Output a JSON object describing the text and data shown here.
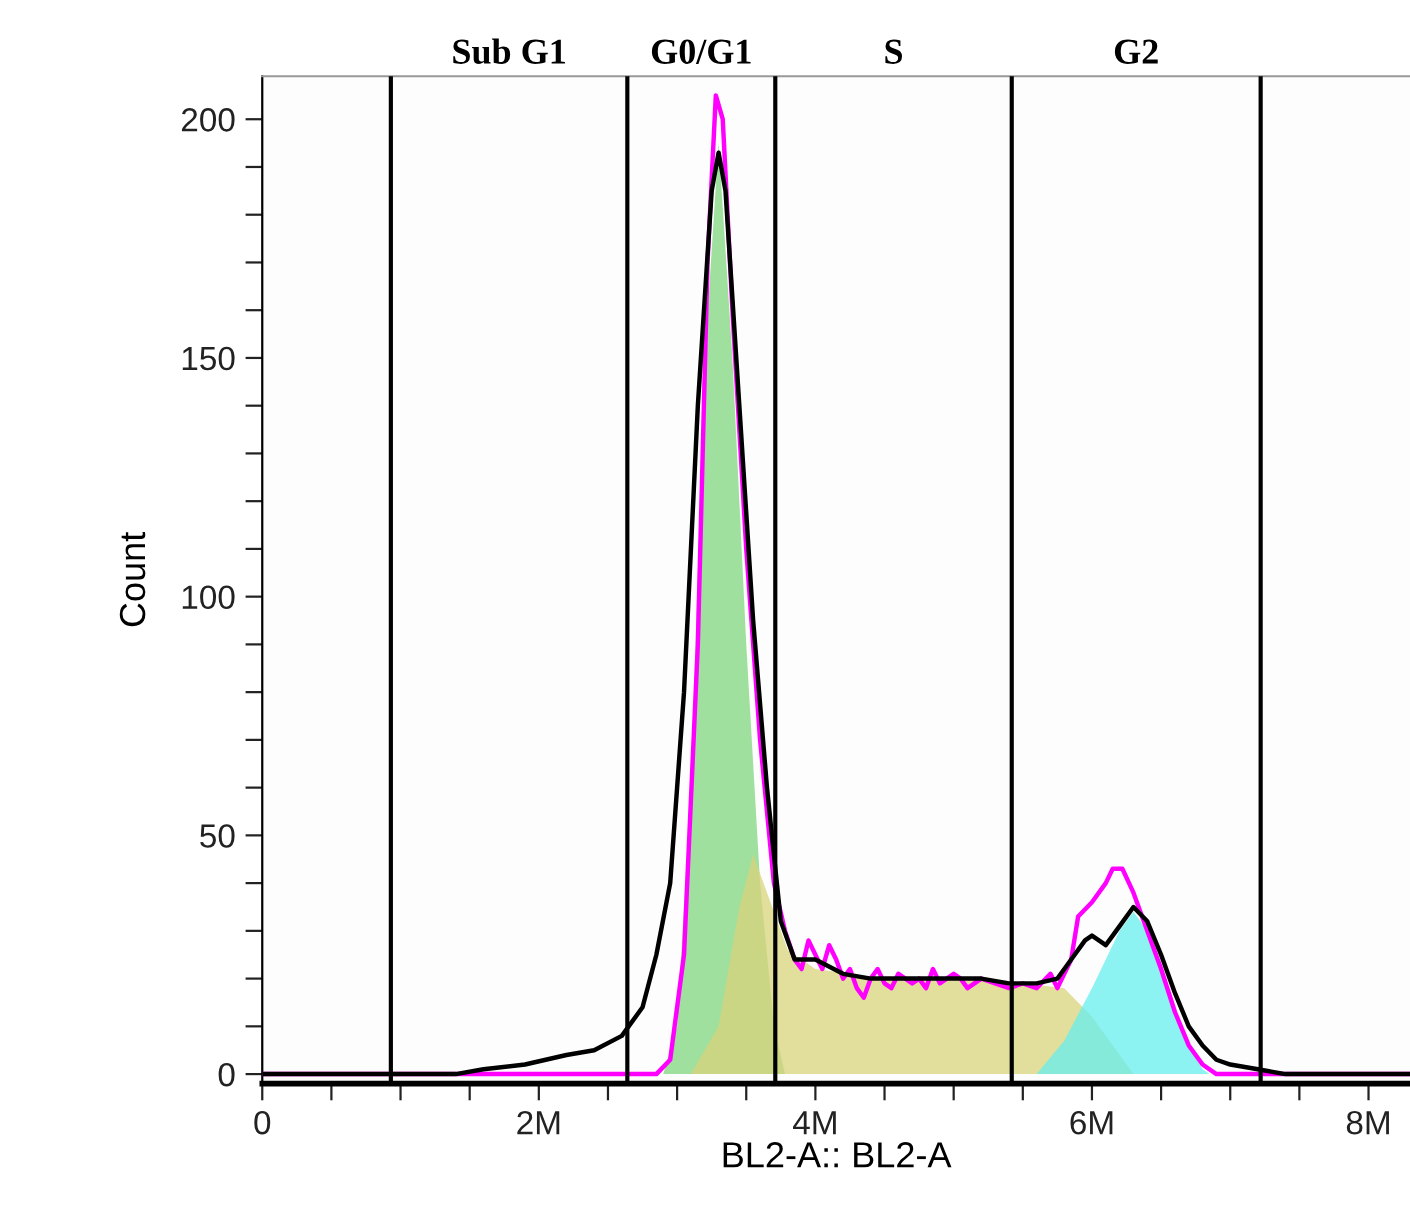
{
  "chart_data": {
    "type": "line",
    "xlabel": "BL2-A:: BL2-A",
    "ylabel": "Count",
    "xlim": [
      0,
      8.3
    ],
    "ylim": [
      -2,
      209
    ],
    "xticks": [
      0,
      {
        "value": 0.5,
        "label": null
      },
      {
        "value": 1,
        "label": null
      },
      {
        "value": 1.5,
        "label": null
      },
      {
        "value": 2,
        "label": "2M"
      },
      {
        "value": 2.5,
        "label": null
      },
      {
        "value": 3,
        "label": null
      },
      {
        "value": 3.5,
        "label": null
      },
      {
        "value": 4,
        "label": "4M"
      },
      {
        "value": 4.5,
        "label": null
      },
      {
        "value": 5,
        "label": null
      },
      {
        "value": 5.5,
        "label": null
      },
      {
        "value": 6,
        "label": "6M"
      },
      {
        "value": 6.5,
        "label": null
      },
      {
        "value": 7,
        "label": null
      },
      {
        "value": 7.5,
        "label": null
      },
      {
        "value": 8,
        "label": "8M"
      }
    ],
    "yticks": [
      0,
      {
        "value": 10,
        "label": null
      },
      {
        "value": 20,
        "label": null
      },
      {
        "value": 30,
        "label": null
      },
      {
        "value": 40,
        "label": null
      },
      50,
      {
        "value": 60,
        "label": null
      },
      {
        "value": 70,
        "label": null
      },
      {
        "value": 80,
        "label": null
      },
      {
        "value": 90,
        "label": null
      },
      100,
      {
        "value": 110,
        "label": null
      },
      {
        "value": 120,
        "label": null
      },
      {
        "value": 130,
        "label": null
      },
      {
        "value": 140,
        "label": null
      },
      150,
      {
        "value": 160,
        "label": null
      },
      {
        "value": 170,
        "label": null
      },
      {
        "value": 180,
        "label": null
      },
      {
        "value": 190,
        "label": null
      },
      200
    ],
    "grid": false,
    "legend": false,
    "marker": "none",
    "line_style": "solid",
    "series": [
      {
        "type": "area",
        "color": "#7fd67f",
        "x": [
          2.9,
          3.0,
          3.1,
          3.2,
          3.3,
          3.4,
          3.5,
          3.6,
          3.7,
          3.78
        ],
        "values": [
          0,
          10,
          60,
          150,
          195,
          150,
          90,
          40,
          10,
          0
        ]
      },
      {
        "type": "area",
        "color": "#d8d37a",
        "x": [
          3.1,
          3.3,
          3.45,
          3.55,
          3.65,
          3.8,
          4.0,
          4.5,
          5.0,
          5.5,
          5.8,
          6.0,
          6.2,
          6.3
        ],
        "values": [
          0,
          10,
          35,
          46,
          38,
          26,
          22,
          20,
          20,
          19,
          18,
          12,
          4,
          0
        ]
      },
      {
        "type": "area",
        "color": "#66eeee",
        "x": [
          5.6,
          5.8,
          6.0,
          6.2,
          6.3,
          6.4,
          6.5,
          6.6,
          6.7,
          6.8,
          6.85
        ],
        "values": [
          0,
          7,
          18,
          30,
          34,
          30,
          22,
          14,
          6,
          1,
          0
        ]
      },
      {
        "color": "#ff00ff",
        "x": [
          0,
          2.85,
          2.95,
          3.05,
          3.15,
          3.22,
          3.28,
          3.33,
          3.4,
          3.5,
          3.6,
          3.7,
          3.78,
          3.85,
          3.9,
          3.95,
          4.0,
          4.05,
          4.1,
          4.15,
          4.2,
          4.25,
          4.3,
          4.35,
          4.4,
          4.45,
          4.5,
          4.55,
          4.6,
          4.7,
          4.75,
          4.8,
          4.85,
          4.9,
          5.0,
          5.05,
          5.1,
          5.2,
          5.3,
          5.4,
          5.5,
          5.6,
          5.7,
          5.75,
          5.85,
          5.9,
          6.0,
          6.1,
          6.15,
          6.22,
          6.3,
          6.4,
          6.5,
          6.6,
          6.7,
          6.8,
          6.9,
          8.3
        ],
        "values": [
          0,
          0,
          3,
          25,
          90,
          170,
          205,
          200,
          160,
          110,
          70,
          40,
          30,
          24,
          22,
          28,
          25,
          22,
          27,
          24,
          20,
          22,
          18,
          16,
          20,
          22,
          19,
          18,
          21,
          19,
          20,
          18,
          22,
          19,
          21,
          20,
          18,
          20,
          19,
          18,
          19,
          18,
          21,
          18,
          24,
          33,
          36,
          40,
          43,
          43,
          38,
          30,
          22,
          13,
          6,
          2,
          0,
          0
        ]
      },
      {
        "color": "#000000",
        "x": [
          0,
          1.4,
          1.6,
          1.9,
          2.2,
          2.4,
          2.6,
          2.75,
          2.85,
          2.95,
          3.05,
          3.15,
          3.25,
          3.3,
          3.35,
          3.45,
          3.55,
          3.65,
          3.75,
          3.85,
          4.0,
          4.2,
          4.4,
          4.6,
          4.8,
          5.0,
          5.2,
          5.4,
          5.6,
          5.75,
          5.85,
          5.95,
          6.0,
          6.1,
          6.2,
          6.3,
          6.4,
          6.5,
          6.6,
          6.7,
          6.8,
          6.9,
          7.0,
          7.2,
          7.4,
          8.3
        ],
        "values": [
          0,
          0,
          1,
          2,
          4,
          5,
          8,
          14,
          25,
          40,
          80,
          140,
          185,
          193,
          185,
          140,
          95,
          60,
          32,
          24,
          24,
          21,
          20,
          20,
          20,
          20,
          20,
          19,
          19,
          20,
          24,
          28,
          29,
          27,
          31,
          35,
          32,
          25,
          17,
          10,
          6,
          3,
          2,
          1,
          0,
          0
        ]
      }
    ],
    "ref_lines": [
      {
        "axis": "x",
        "value": 0.93,
        "color": "#000000"
      },
      {
        "axis": "x",
        "value": 2.64,
        "color": "#000000"
      },
      {
        "axis": "x",
        "value": 3.71,
        "color": "#000000"
      },
      {
        "axis": "x",
        "value": 5.42,
        "color": "#000000"
      },
      {
        "axis": "x",
        "value": 7.22,
        "color": "#000000"
      }
    ],
    "annotations": [
      "Sub G1",
      "G0/G1",
      "S",
      "G2"
    ]
  }
}
